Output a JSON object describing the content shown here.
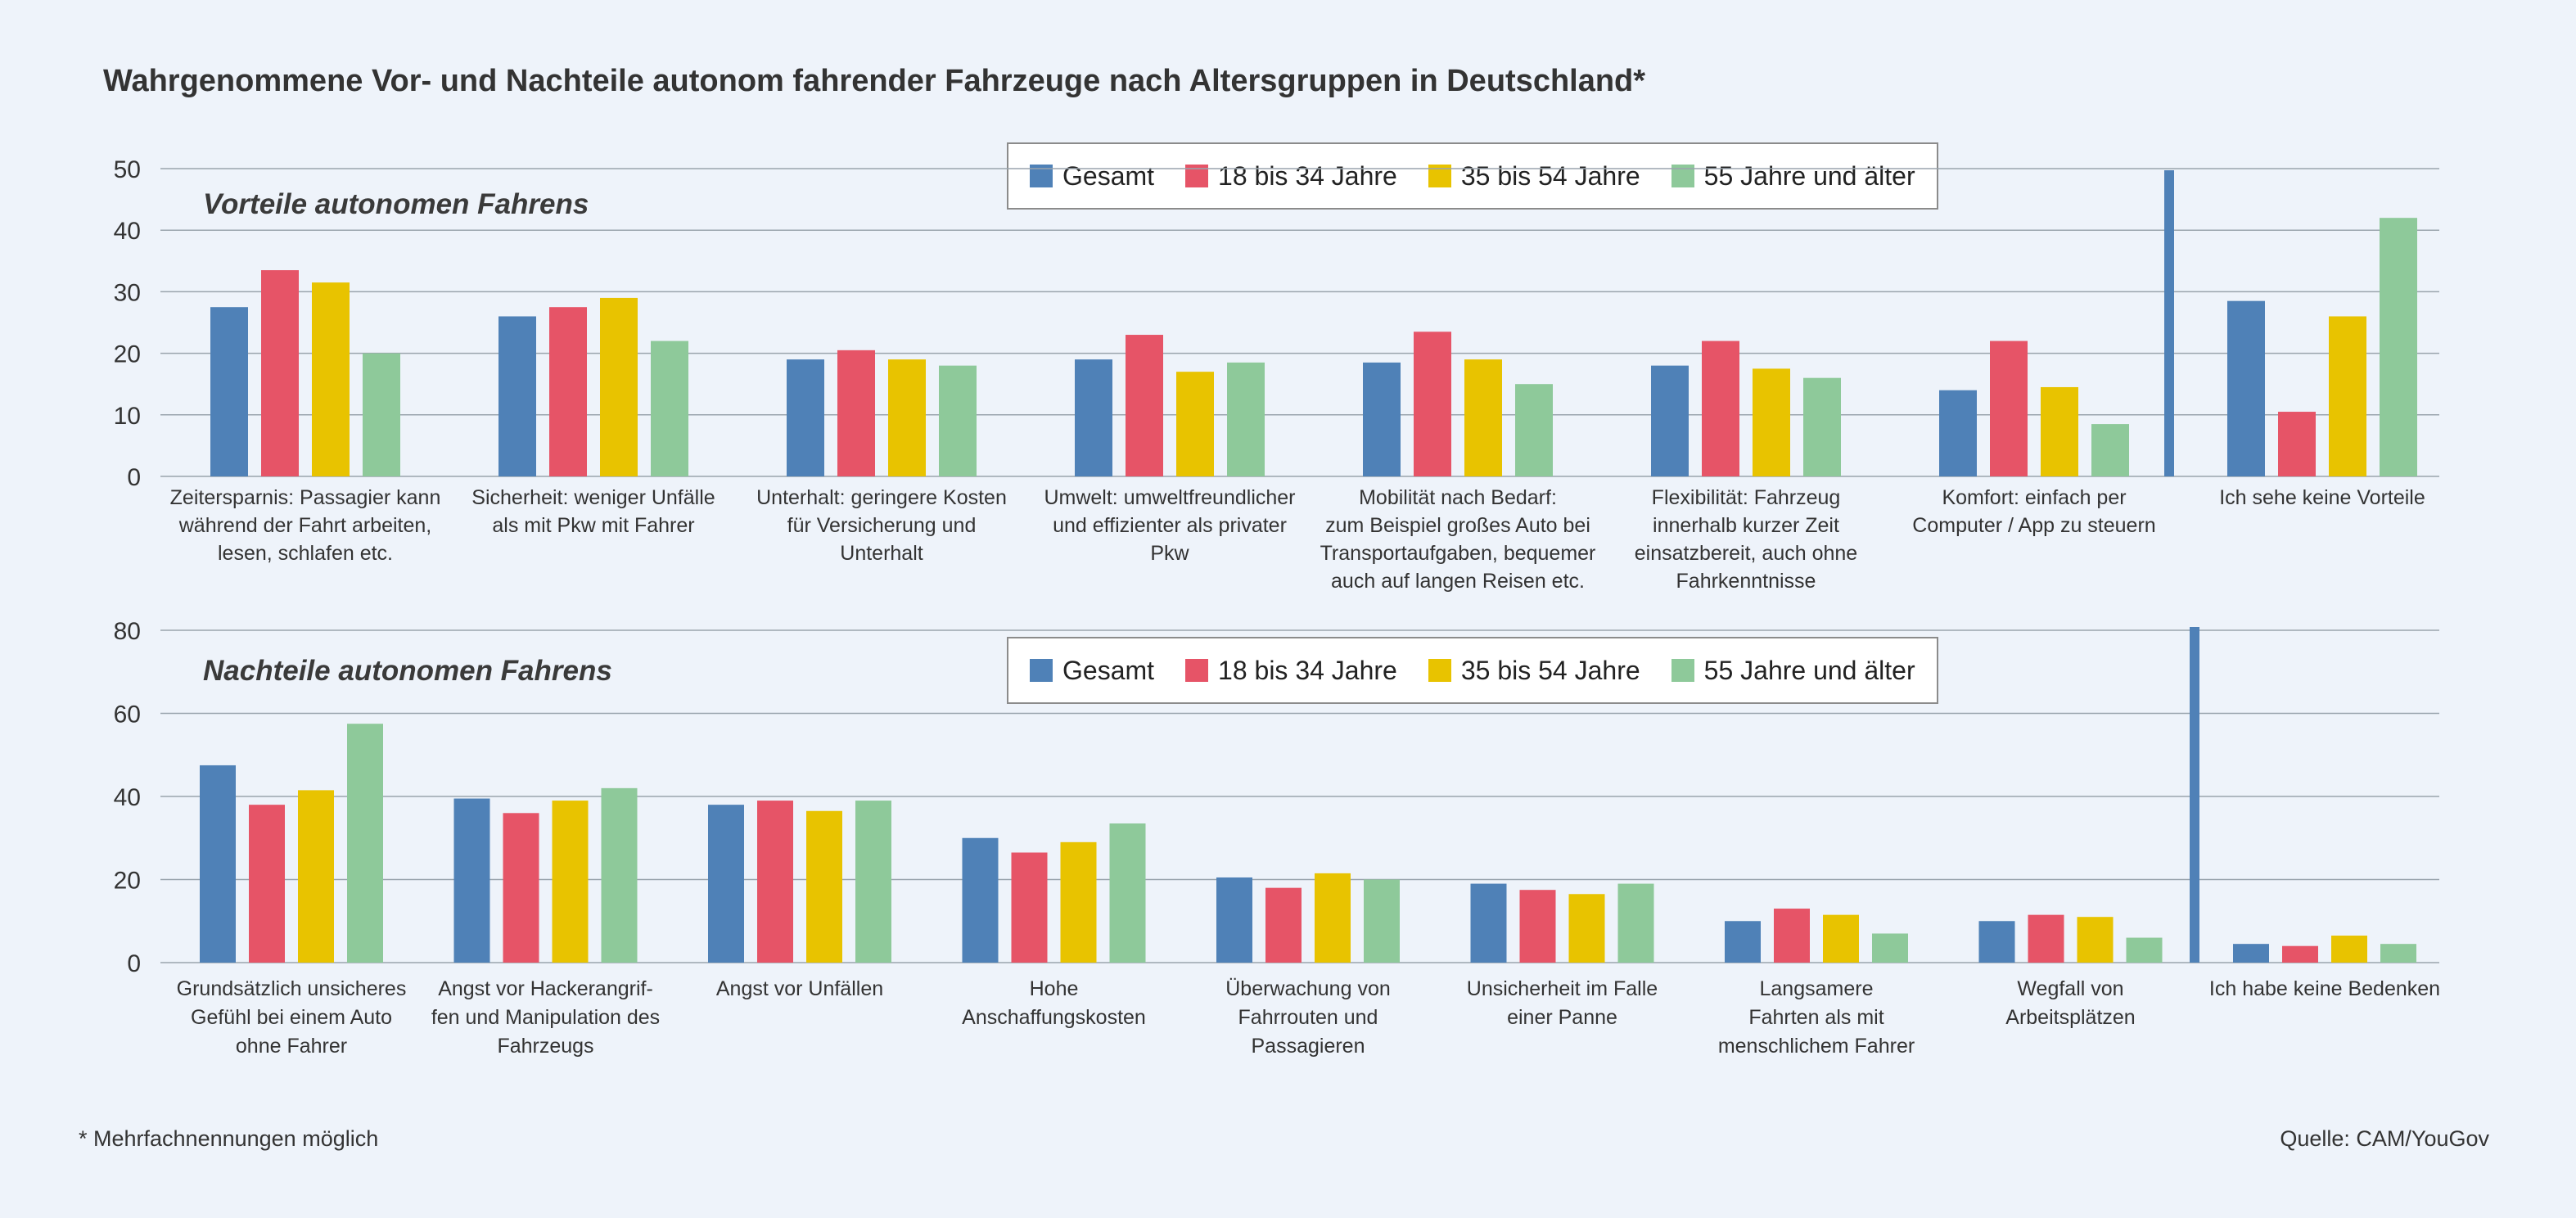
{
  "title": "Wahrgenommene Vor- und Nachteile autonom fahrender Fahrzeuge nach Altersgruppen in Deutschland*",
  "colors": {
    "gesamt": "#4f81b7",
    "jung": "#e65467",
    "mittel": "#e8c300",
    "alt": "#8ec99a",
    "divider": "#4f81b7",
    "grid": "#9aa4ad"
  },
  "legend": [
    {
      "label": "Gesamt",
      "color": "#4f81b7"
    },
    {
      "label": "18 bis 34 Jahre",
      "color": "#e65467"
    },
    {
      "label": "35 bis 54 Jahre",
      "color": "#e8c300"
    },
    {
      "label": "55 Jahre und älter",
      "color": "#8ec99a"
    }
  ],
  "chart_data": [
    {
      "type": "bar",
      "title": "Vorteile autonomen Fahrens",
      "ylim": [
        0,
        50
      ],
      "yticks": [
        0,
        10,
        20,
        30,
        40,
        50
      ],
      "grid": true,
      "legend_position": "top-center",
      "categories": [
        [
          "Zeitersparnis: Passagier kann",
          "während der Fahrt arbeiten,",
          "lesen, schlafen etc."
        ],
        [
          "Sicherheit: weniger Unfälle",
          "als mit Pkw mit Fahrer"
        ],
        [
          "Unterhalt: geringere Kosten",
          "für Versicherung und",
          "Unterhalt"
        ],
        [
          "Umwelt: umweltfreundlicher",
          "und effizienter als privater",
          "Pkw"
        ],
        [
          "Mobilität nach Bedarf:",
          "zum Beispiel großes Auto bei",
          "Transportaufgaben, bequemer",
          "auch auf langen Reisen etc."
        ],
        [
          "Flexibilität: Fahrzeug",
          "innerhalb kurzer Zeit",
          "einsatzbereit, auch ohne",
          "Fahrkenntnisse"
        ],
        [
          "Komfort: einfach per",
          "Computer / App zu steuern"
        ],
        [
          "Ich sehe keine Vorteile"
        ]
      ],
      "series": [
        {
          "name": "Gesamt",
          "values": [
            27.5,
            26,
            19,
            19,
            18.5,
            18,
            14,
            28.5
          ]
        },
        {
          "name": "18 bis 34 Jahre",
          "values": [
            33.5,
            27.5,
            20.5,
            23,
            23.5,
            22,
            22,
            10.5
          ]
        },
        {
          "name": "35 bis 54 Jahre",
          "values": [
            31.5,
            29,
            19,
            17,
            19,
            17.5,
            14.5,
            26
          ]
        },
        {
          "name": "55 Jahre und älter",
          "values": [
            20,
            22,
            18,
            18.5,
            15,
            16,
            8.5,
            42
          ]
        }
      ]
    },
    {
      "type": "bar",
      "title": "Nachteile autonomen Fahrens",
      "ylim": [
        0,
        80
      ],
      "yticks": [
        0,
        20,
        40,
        60,
        80
      ],
      "grid": true,
      "legend_position": "top-center",
      "categories": [
        [
          "Grundsätzlich unsicheres",
          "Gefühl bei einem Auto",
          "ohne Fahrer"
        ],
        [
          "Angst vor Hackerangrif-",
          "fen und Manipulation des",
          "Fahrzeugs"
        ],
        [
          "Angst vor Unfällen"
        ],
        [
          "Hohe",
          "Anschaffungskosten"
        ],
        [
          "Überwachung von",
          "Fahrrouten und",
          "Passagieren"
        ],
        [
          "Unsicherheit im Falle",
          "einer Panne"
        ],
        [
          "Langsamere",
          "Fahrten als mit",
          "menschlichem Fahrer"
        ],
        [
          "Wegfall von",
          "Arbeitsplätzen"
        ],
        [
          "Ich habe keine Bedenken"
        ]
      ],
      "series": [
        {
          "name": "Gesamt",
          "values": [
            47.5,
            39.5,
            38,
            30,
            20.5,
            19,
            10,
            10,
            4.5
          ]
        },
        {
          "name": "18 bis 34 Jahre",
          "values": [
            38,
            36,
            39,
            26.5,
            18,
            17.5,
            13,
            11.5,
            4
          ]
        },
        {
          "name": "35 bis 54 Jahre",
          "values": [
            41.5,
            39,
            36.5,
            29,
            21.5,
            16.5,
            11.5,
            11,
            6.5
          ]
        },
        {
          "name": "55 Jahre und älter",
          "values": [
            57.5,
            42,
            39,
            33.5,
            20,
            19,
            7,
            6,
            4.5
          ]
        }
      ]
    }
  ],
  "footnote": "* Mehrfachnennungen möglich",
  "source": "Quelle: CAM/YouGov"
}
